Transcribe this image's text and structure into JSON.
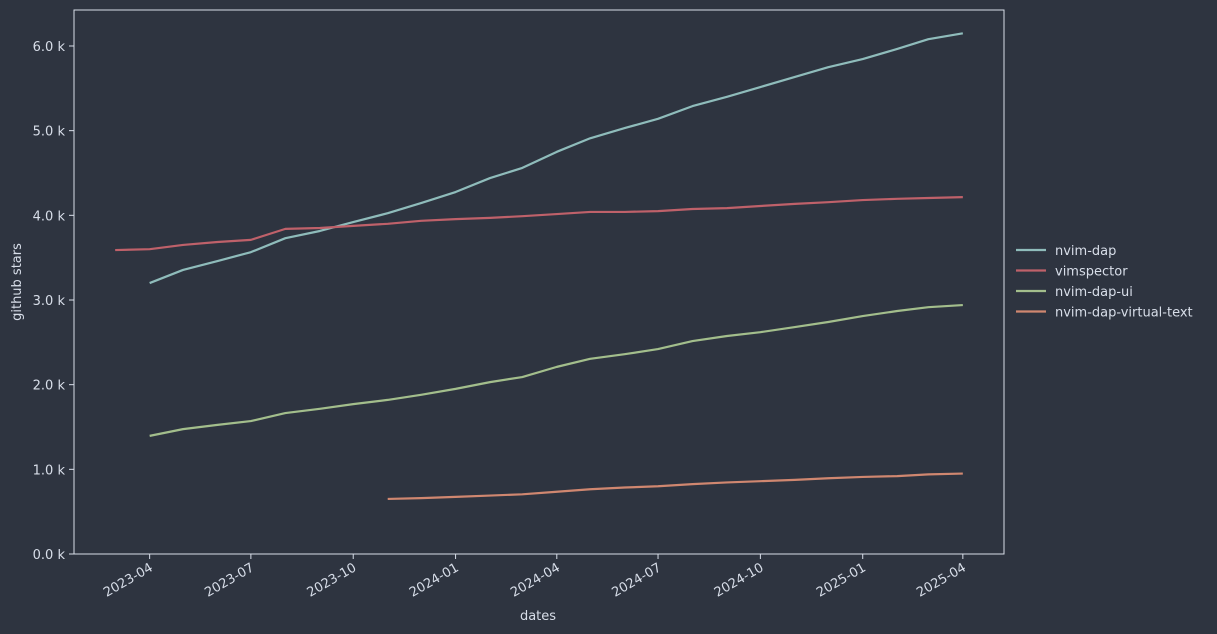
{
  "chart_data": {
    "type": "line",
    "xlabel": "dates",
    "ylabel": "github stars",
    "x": [
      "2023-03",
      "2023-04",
      "2023-05",
      "2023-06",
      "2023-07",
      "2023-08",
      "2023-09",
      "2023-10",
      "2023-11",
      "2023-12",
      "2024-01",
      "2024-02",
      "2024-03",
      "2024-04",
      "2024-05",
      "2024-06",
      "2024-07",
      "2024-08",
      "2024-09",
      "2024-10",
      "2024-11",
      "2024-12",
      "2025-01",
      "2025-02",
      "2025-03",
      "2025-04"
    ],
    "xlim": [
      "2023-01-23",
      "2025-05-08"
    ],
    "xticks": [
      "2023-04",
      "2023-07",
      "2023-10",
      "2024-01",
      "2024-04",
      "2024-07",
      "2024-10",
      "2025-01",
      "2025-04"
    ],
    "ylim": [
      0,
      6425
    ],
    "yticks": [
      {
        "value": 0,
        "label": "0.0 k"
      },
      {
        "value": 1000,
        "label": "1.0 k"
      },
      {
        "value": 2000,
        "label": "2.0 k"
      },
      {
        "value": 3000,
        "label": "3.0 k"
      },
      {
        "value": 4000,
        "label": "4.0 k"
      },
      {
        "value": 5000,
        "label": "5.0 k"
      },
      {
        "value": 6000,
        "label": "6.0 k"
      }
    ],
    "legend": "outside-right",
    "series": [
      {
        "name": "nvim-dap",
        "color": "#8fbcbb",
        "values": [
          null,
          3200,
          3355,
          3460,
          3565,
          3730,
          3815,
          3920,
          4025,
          4145,
          4275,
          4440,
          4560,
          4750,
          4910,
          5030,
          5140,
          5290,
          5400,
          5515,
          5635,
          5750,
          5845,
          5965,
          6080,
          6150
        ]
      },
      {
        "name": "vimspector",
        "color": "#bf616a",
        "values": [
          3590,
          3600,
          3650,
          3685,
          3710,
          3840,
          3850,
          3875,
          3900,
          3935,
          3955,
          3970,
          3990,
          4015,
          4040,
          4040,
          4050,
          4075,
          4085,
          4110,
          4135,
          4155,
          4180,
          4195,
          4205,
          4215
        ]
      },
      {
        "name": "nvim-dap-ui",
        "color": "#a3be8c",
        "values": [
          null,
          1395,
          1475,
          1525,
          1570,
          1665,
          1715,
          1770,
          1820,
          1880,
          1950,
          2030,
          2090,
          2210,
          2305,
          2360,
          2420,
          2515,
          2575,
          2620,
          2680,
          2740,
          2810,
          2870,
          2915,
          2940
        ]
      },
      {
        "name": "nvim-dap-virtual-text",
        "color": "#d08770",
        "values": [
          null,
          null,
          null,
          null,
          null,
          null,
          null,
          null,
          650,
          660,
          675,
          690,
          705,
          735,
          765,
          785,
          800,
          825,
          845,
          860,
          875,
          895,
          910,
          920,
          940,
          950
        ]
      }
    ]
  }
}
